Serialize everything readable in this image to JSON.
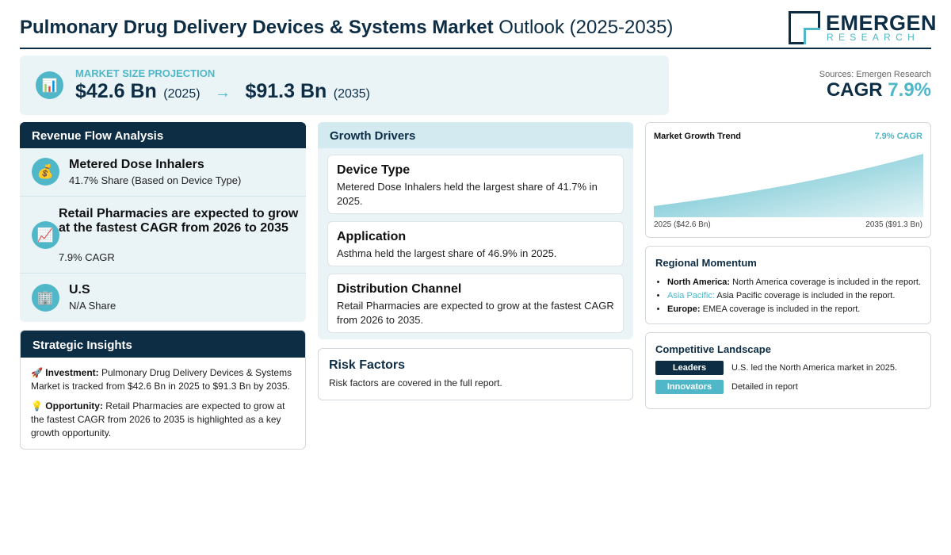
{
  "header": {
    "title_bold": "Pulmonary Drug Delivery Devices & Systems Market",
    "title_rest": "Outlook (2025-2035)",
    "logo_name": "EMERGEN",
    "logo_sub": "RESEARCH"
  },
  "projection": {
    "icon": "bar-chart-icon",
    "label": "MARKET SIZE PROJECTION",
    "start_value": "$42.6 Bn",
    "start_year": "(2025)",
    "arrow": "→",
    "end_value": "$91.3 Bn",
    "end_year": "(2035)"
  },
  "sources": "Sources: Emergen Research",
  "cagr": {
    "label": "CAGR",
    "value": "7.9%"
  },
  "revenue_flow": {
    "heading": "Revenue Flow Analysis",
    "items": [
      {
        "icon": "money-bag-icon",
        "title": "Metered Dose Inhalers",
        "sub": "41.7% Share (Based on Device Type)"
      },
      {
        "icon": "chart-increasing-icon",
        "title": "Retail Pharmacies are expected to grow at the fastest CAGR from 2026 to 2035",
        "sub": "7.9% CAGR"
      },
      {
        "icon": "office-building-icon",
        "title": "U.S",
        "sub": "N/A Share"
      }
    ]
  },
  "strategic": {
    "heading": "Strategic Insights",
    "items": [
      {
        "icon": "rocket-icon",
        "label": "Investment:",
        "text": "Pulmonary Drug Delivery Devices & Systems Market is tracked from $42.6 Bn in 2025 to $91.3 Bn by 2035."
      },
      {
        "icon": "light-bulb-icon",
        "label": "Opportunity:",
        "text": "Retail Pharmacies are expected to grow at the fastest CAGR from 2026 to 2035 is highlighted as a key growth opportunity."
      }
    ]
  },
  "drivers": {
    "heading": "Growth Drivers",
    "cards": [
      {
        "title": "Device Type",
        "text": "Metered Dose Inhalers held the largest share of 41.7% in 2025."
      },
      {
        "title": "Application",
        "text": "Asthma held the largest share of 46.9% in 2025."
      },
      {
        "title": "Distribution Channel",
        "text": "Retail Pharmacies are expected to grow at the fastest CAGR from 2026 to 2035."
      }
    ]
  },
  "risk": {
    "title": "Risk Factors",
    "text": "Risk factors are covered in the full report."
  },
  "trend": {
    "title": "Market Growth Trend",
    "cagr": "7.9% CAGR",
    "x_start": "2025 ($42.6 Bn)",
    "x_end": "2035 ($91.3 Bn)"
  },
  "chart_data": {
    "type": "area",
    "x": [
      2025,
      2035
    ],
    "values": [
      42.6,
      91.3
    ],
    "title": "Market Growth Trend",
    "color": "#4fb7c8"
  },
  "regional": {
    "heading": "Regional Momentum",
    "items": [
      {
        "label": "North America:",
        "text": "North America coverage is included in the report."
      },
      {
        "label": "Asia Pacific:",
        "text": "Asia Pacific coverage is included in the report."
      },
      {
        "label": "Europe:",
        "text": "EMEA coverage is included in the report."
      }
    ]
  },
  "competitive": {
    "heading": "Competitive Landscape",
    "rows": [
      {
        "pill": "Leaders",
        "text": "U.S. led the North America market in 2025."
      },
      {
        "pill": "Innovators",
        "text": "Detailed in report"
      }
    ]
  },
  "colors": {
    "navy": "#0d2d45",
    "teal": "#4fb7c8",
    "panel": "#eaf4f7"
  }
}
